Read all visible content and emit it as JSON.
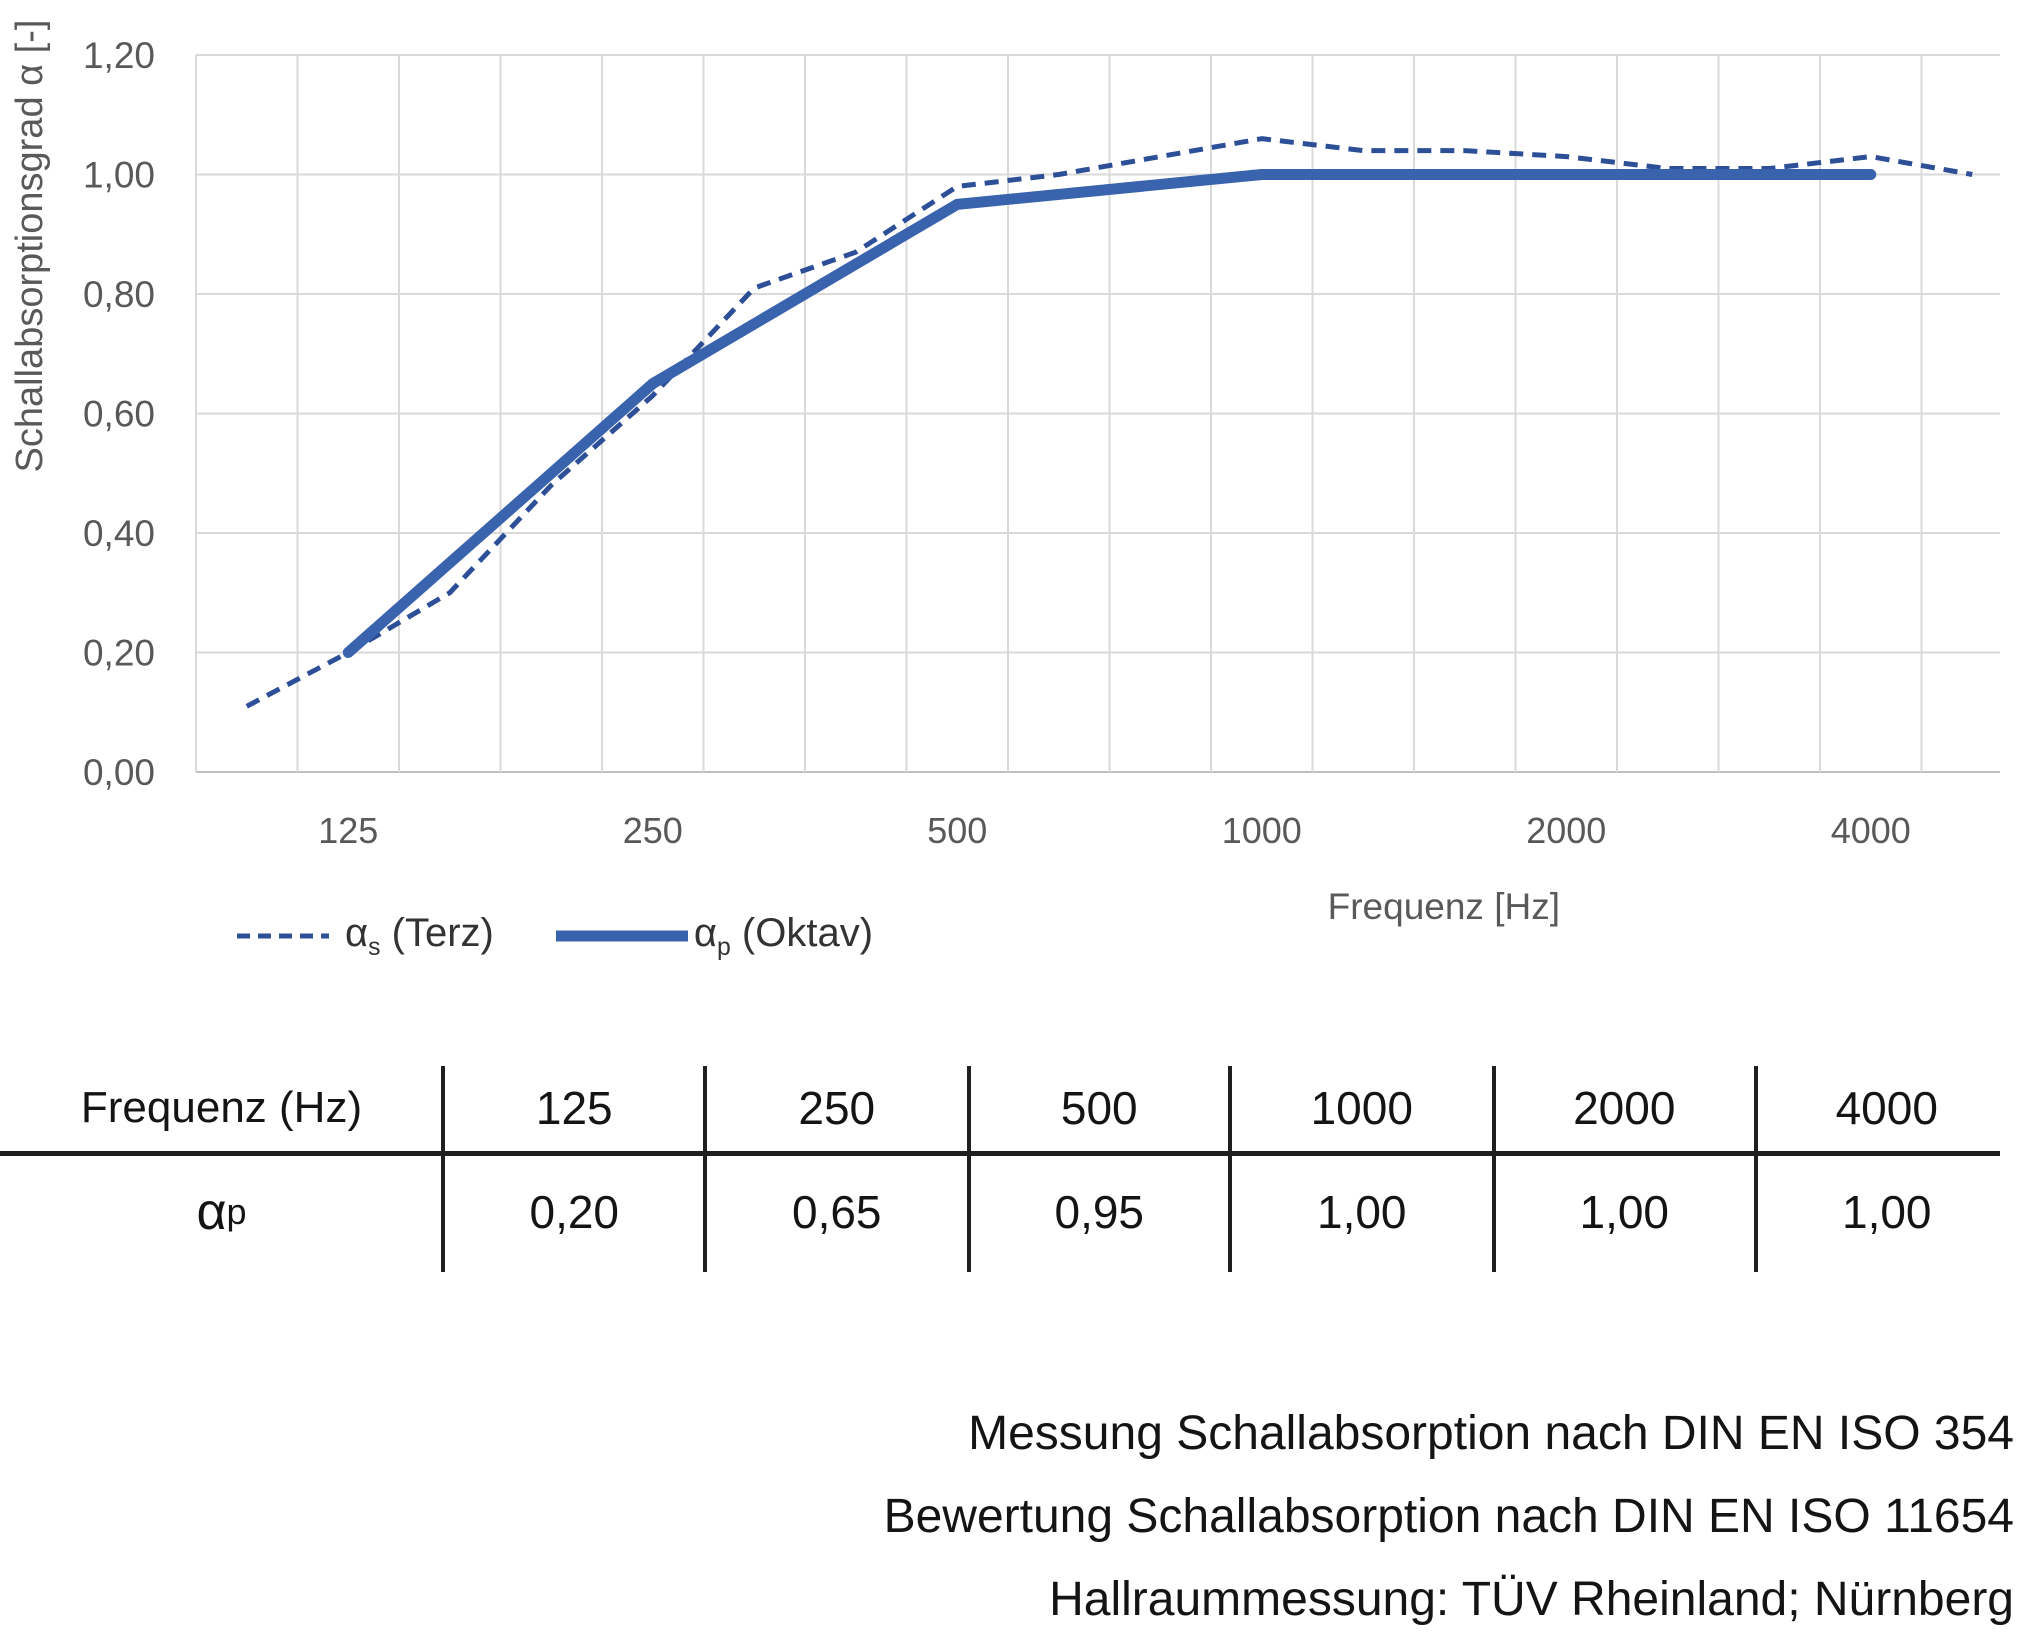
{
  "chart_data": {
    "type": "line",
    "title": "",
    "x_axis": {
      "label": "Frequenz [Hz]",
      "scale": "third-octave-bands",
      "bands": [
        100,
        125,
        160,
        200,
        250,
        315,
        400,
        500,
        630,
        800,
        1000,
        1250,
        1600,
        2000,
        2500,
        3150,
        4000,
        5000
      ],
      "tick_labels": [
        "125",
        "250",
        "500",
        "1000",
        "2000",
        "4000"
      ]
    },
    "y_axis": {
      "label": "Schallabsorptionsgrad α [-]",
      "min": 0,
      "max": 1.2,
      "step": 0.2,
      "tick_labels": [
        "0,00",
        "0,20",
        "0,40",
        "0,60",
        "0,80",
        "1,00",
        "1,20"
      ]
    },
    "grid": "on",
    "legend_position": "bottom-left",
    "series": [
      {
        "name": "αs (Terz)",
        "sym": "α",
        "sub": "s",
        "suffix": " (Terz)",
        "style": "dashed",
        "color": "#2d4f97",
        "x": [
          100,
          125,
          160,
          200,
          250,
          315,
          400,
          500,
          630,
          800,
          1000,
          1250,
          1600,
          2000,
          2500,
          3150,
          4000,
          5000
        ],
        "values": [
          0.11,
          0.2,
          0.3,
          0.48,
          0.63,
          0.81,
          0.87,
          0.98,
          1.0,
          1.03,
          1.06,
          1.04,
          1.04,
          1.03,
          1.01,
          1.01,
          1.03,
          1.0
        ]
      },
      {
        "name": "αp (Oktav)",
        "sym": "α",
        "sub": "p",
        "suffix": " (Oktav)",
        "style": "solid",
        "color": "#3a63ae",
        "x": [
          125,
          250,
          500,
          1000,
          2000,
          4000
        ],
        "values": [
          0.2,
          0.65,
          0.95,
          1.0,
          1.0,
          1.0
        ]
      }
    ],
    "colors": {
      "gridline": "#d9d9d9",
      "axis_line": "#bfbfbf",
      "tick_text": "#595959"
    }
  },
  "table": {
    "header_row": [
      "Frequenz (Hz)",
      "125",
      "250",
      "500",
      "1000",
      "2000",
      "4000"
    ],
    "row_label": {
      "symbol": "α",
      "sub": "p"
    },
    "values": [
      "0,20",
      "0,65",
      "0,95",
      "1,00",
      "1,00",
      "1,00"
    ]
  },
  "footer": {
    "lines": [
      "Messung Schallabsorption nach DIN EN ISO 354",
      "Bewertung Schallabsorption nach DIN EN ISO 11654",
      "Hallraummessung: TÜV Rheinland; Nürnberg"
    ]
  }
}
